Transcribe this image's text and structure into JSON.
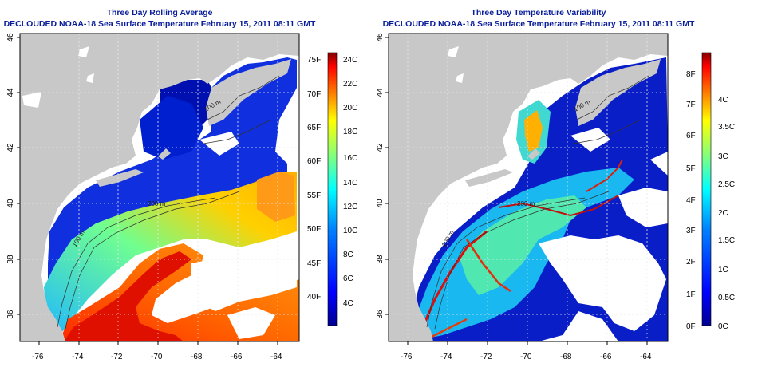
{
  "left_panel": {
    "title": "Three Day Rolling Average",
    "subtitle": "DECLOUDED NOAA-18 Sea Surface Temperature February 15, 2011 08:11 GMT",
    "x_ticks": [
      "-76",
      "-74",
      "-72",
      "-70",
      "-68",
      "-66",
      "-64"
    ],
    "y_ticks": [
      "46",
      "44",
      "42",
      "40",
      "38",
      "36"
    ],
    "contour_labels": [
      "100 m",
      "100 m",
      "200 m",
      "200 m",
      "100 m"
    ],
    "colorbar_f": [
      "75F",
      "70F",
      "65F",
      "60F",
      "55F",
      "50F",
      "45F",
      "40F"
    ],
    "colorbar_c": [
      "24C",
      "22C",
      "20C",
      "18C",
      "16C",
      "14C",
      "12C",
      "10C",
      "8C",
      "6C",
      "4C"
    ],
    "colorbar_colors": [
      "#00008f",
      "#0000ff",
      "#0080ff",
      "#00ffff",
      "#80ff80",
      "#ffff00",
      "#ff8000",
      "#ff0000",
      "#800000"
    ]
  },
  "right_panel": {
    "title": "Three Day Temperature Variability",
    "subtitle": "DECLOUDED NOAA-18 Sea Surface Temperature February 15, 2011 08:11 GMT",
    "x_ticks": [
      "-76",
      "-74",
      "-72",
      "-70",
      "-68",
      "-66",
      "-64"
    ],
    "y_ticks": [
      "46",
      "44",
      "42",
      "40",
      "38",
      "36"
    ],
    "contour_labels": [
      "100 m",
      "100 m",
      "200 m",
      "200 m",
      "100 m"
    ],
    "colorbar_f": [
      "8F",
      "7F",
      "6F",
      "5F",
      "4F",
      "3F",
      "2F",
      "1F",
      "0F"
    ],
    "colorbar_c": [
      "4C",
      "3.5C",
      "3C",
      "2.5C",
      "2C",
      "1.5C",
      "1C",
      "0.5C",
      "0C"
    ],
    "colorbar_colors": [
      "#00008f",
      "#0000ff",
      "#0080ff",
      "#00ffff",
      "#80ff80",
      "#ffff00",
      "#ff8000",
      "#ff0000",
      "#800000"
    ]
  },
  "colors": {
    "land": "#c8c8c8",
    "no_data": "#ffffff",
    "title_blue": "#0a1e9a"
  }
}
